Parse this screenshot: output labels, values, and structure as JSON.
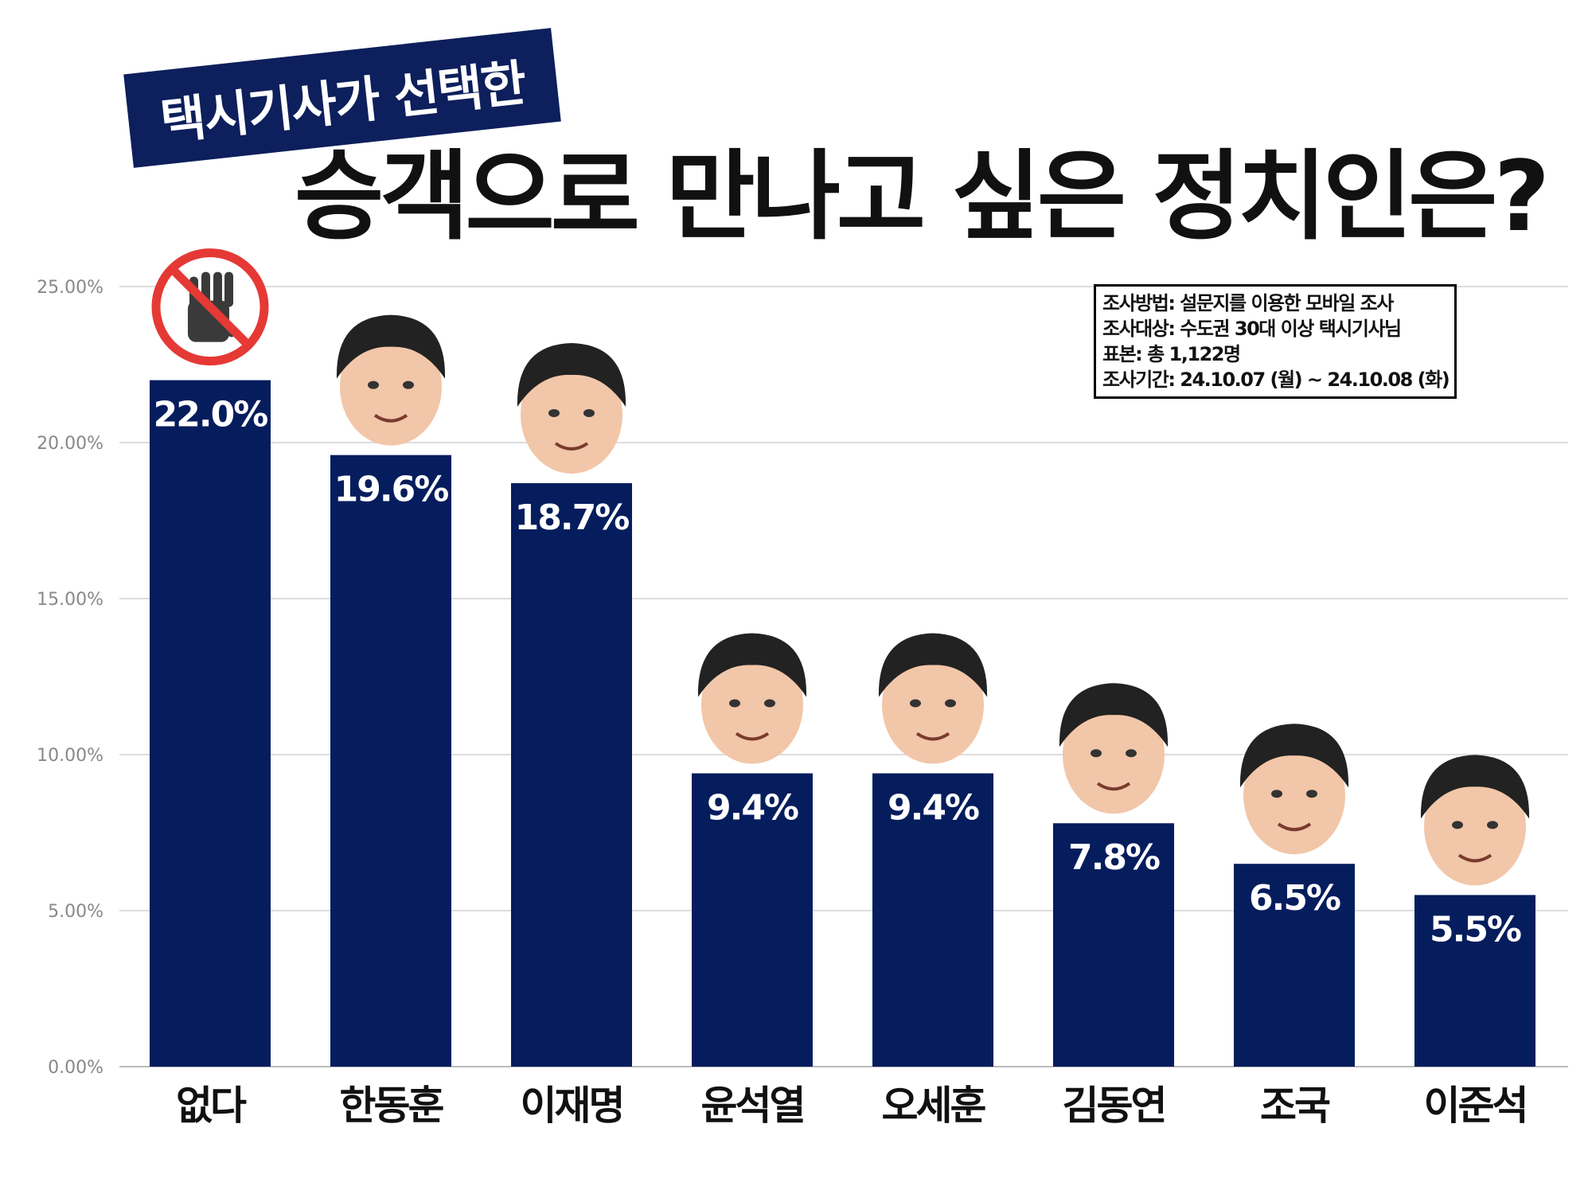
{
  "subtitle": "택시기사가 선택한",
  "title": "승객으로 만나고 싶은 정치인은?",
  "survey_info": [
    "조사방법: 설문지를 이용한 모바일 조사",
    "조사대상: 수도권 30대 이상 택시기사님",
    "표본: 총 1,122명",
    "조사기간: 24.10.07 (월) ~ 24.10.08 (화)"
  ],
  "colors": {
    "bar": "#051d5d",
    "title_banner": "#0d1f5c",
    "grid": "#dddddd",
    "axis_label": "#888888",
    "category_label": "#111111",
    "bar_label": "#ffffff",
    "no_sign": "#e53935",
    "hand": "#3a3a3a",
    "face": "#f2c6a8",
    "hair": "#222222"
  },
  "chart_data": {
    "type": "bar",
    "categories": [
      "없다",
      "한동훈",
      "이재명",
      "윤석열",
      "오세훈",
      "김동연",
      "조국",
      "이준석"
    ],
    "values": [
      22.0,
      19.6,
      18.7,
      9.4,
      9.4,
      7.8,
      6.5,
      5.5
    ],
    "value_labels": [
      "22.0%",
      "19.6%",
      "18.7%",
      "9.4%",
      "9.4%",
      "7.8%",
      "6.5%",
      "5.5%"
    ],
    "y_ticks": [
      0,
      5,
      10,
      15,
      20,
      25
    ],
    "y_tick_labels": [
      "0.00%",
      "5.00%",
      "10.00%",
      "15.00%",
      "20.00%",
      "25.00%"
    ],
    "ylim": [
      0,
      25
    ],
    "grid": true,
    "icons": [
      "no-hand-icon",
      "face-icon",
      "face-icon",
      "face-icon",
      "face-icon",
      "face-icon",
      "face-icon",
      "face-icon"
    ]
  }
}
